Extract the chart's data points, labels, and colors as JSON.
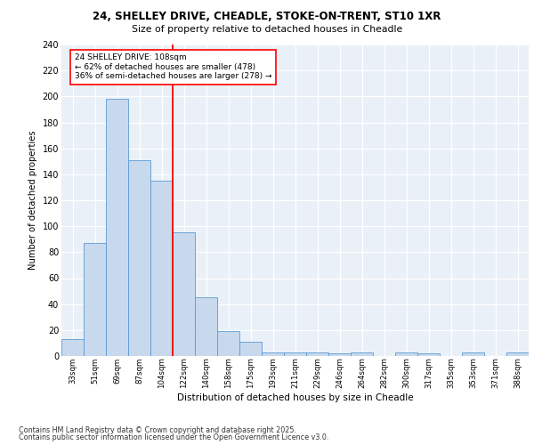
{
  "title_line1": "24, SHELLEY DRIVE, CHEADLE, STOKE-ON-TRENT, ST10 1XR",
  "title_line2": "Size of property relative to detached houses in Cheadle",
  "xlabel": "Distribution of detached houses by size in Cheadle",
  "ylabel": "Number of detached properties",
  "bar_labels": [
    "33sqm",
    "51sqm",
    "69sqm",
    "87sqm",
    "104sqm",
    "122sqm",
    "140sqm",
    "158sqm",
    "175sqm",
    "193sqm",
    "211sqm",
    "229sqm",
    "246sqm",
    "264sqm",
    "282sqm",
    "300sqm",
    "317sqm",
    "335sqm",
    "353sqm",
    "371sqm",
    "388sqm"
  ],
  "bar_values": [
    13,
    87,
    198,
    151,
    135,
    95,
    45,
    19,
    11,
    3,
    3,
    3,
    2,
    3,
    0,
    3,
    2,
    0,
    3,
    0,
    3
  ],
  "bar_color": "#c8d9ed",
  "bar_edge_color": "#5b9bd5",
  "vline_x_idx": 4.5,
  "vline_color": "red",
  "annotation_text": "24 SHELLEY DRIVE: 108sqm\n← 62% of detached houses are smaller (478)\n36% of semi-detached houses are larger (278) →",
  "annotation_box_color": "white",
  "annotation_edge_color": "red",
  "footnote_line1": "Contains HM Land Registry data © Crown copyright and database right 2025.",
  "footnote_line2": "Contains public sector information licensed under the Open Government Licence v3.0.",
  "bg_color": "#eaf0f8",
  "ylim": [
    0,
    240
  ],
  "yticks": [
    0,
    20,
    40,
    60,
    80,
    100,
    120,
    140,
    160,
    180,
    200,
    220,
    240
  ]
}
